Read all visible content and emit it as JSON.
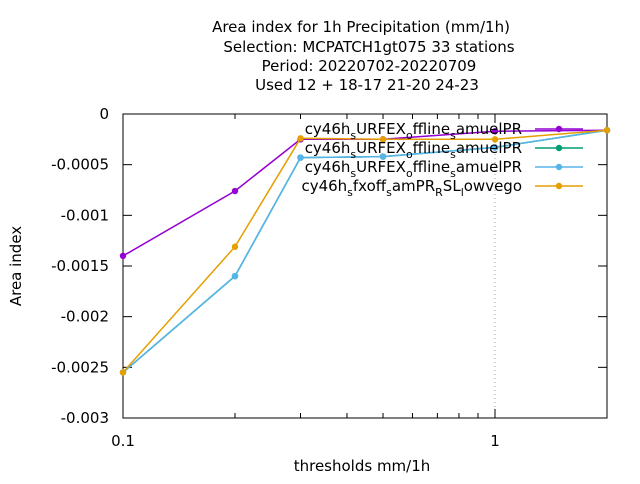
{
  "chart_data": {
    "type": "line",
    "title_lines": [
      "Area index  for 1h Precipitation (mm/1h)",
      "Selection: MCPATCH1gt075      33 stations",
      "Period: 20220702-20220709",
      "Used  12 + 18-17 21-20 24-23"
    ],
    "xlabel": "thresholds mm/1h",
    "ylabel": "Area index",
    "x_scale": "log",
    "xlim": [
      0.1,
      2
    ],
    "ylim": [
      -0.003,
      0
    ],
    "x_tick_labels": [
      "0.1",
      "1"
    ],
    "y_tick_labels": [
      "0",
      "-0.0005",
      "-0.001",
      "-0.0015",
      "-0.002",
      "-0.0025",
      "-0.003"
    ],
    "x": [
      0.1,
      0.2,
      0.3,
      0.5,
      1,
      2
    ],
    "legend_position": "top-right",
    "grid": "vertical dotted lines at major x ticks",
    "series": [
      {
        "name": "cy46h_sURFEX_offline_samuelPR",
        "color": "#9400d3",
        "values": [
          -0.0014,
          -0.00076,
          -0.00025,
          -0.00025,
          -0.00017,
          -0.00016
        ]
      },
      {
        "name": "cy46h_sURFEX_offline_samuelPR",
        "color": "#009e73",
        "values": [
          -0.00255,
          -0.0016,
          -0.00043,
          -0.00042,
          -0.00033,
          -0.00016
        ]
      },
      {
        "name": "cy46h_sURFEX_offline_samuelPR",
        "color": "#56b4e9",
        "values": [
          -0.00255,
          -0.0016,
          -0.00043,
          -0.00042,
          -0.00033,
          -0.00016
        ]
      },
      {
        "name": "cy46h_sfxoff_samPR_RSL_lowvego",
        "color": "#e69f00",
        "values": [
          -0.00255,
          -0.00131,
          -0.00024,
          -0.00025,
          -0.00025,
          -0.00016
        ]
      }
    ]
  }
}
